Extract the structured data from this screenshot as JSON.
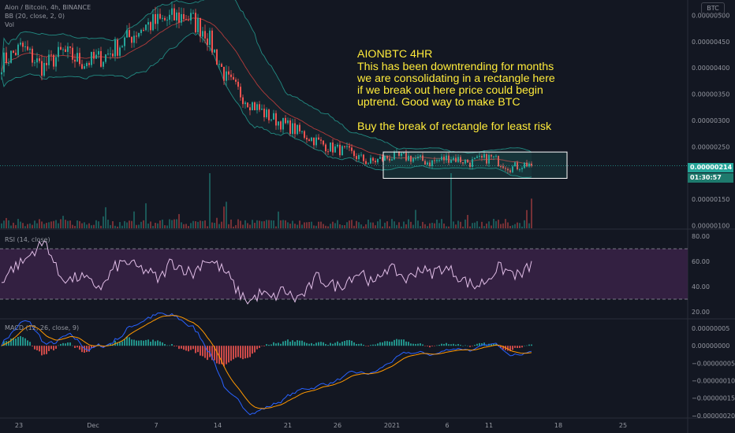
{
  "header": {
    "symbol_line": "Aion / Bitcoin, 4h, BINANCE",
    "bb_line": "BB (20, close, 2, 0)",
    "vol_line": "Vol",
    "currency_button": "BTC"
  },
  "annotation": {
    "lines": [
      "AIONBTC 4HR",
      "This has been downtrending for months",
      "we are consolidating in a rectangle here",
      "if we break out here price could begin",
      "uptrend. Good way to make BTC",
      "",
      "Buy the break of rectangle for least risk"
    ]
  },
  "price_axis": {
    "ticks": [
      "0.00000500",
      "0.00000450",
      "0.00000400",
      "0.00000350",
      "0.00000300",
      "0.00000250",
      "0.00000150",
      "0.00000100"
    ],
    "last_price": "0.00000214",
    "countdown": "01:30:57"
  },
  "rsi": {
    "label": "RSI (14, close)",
    "ticks": [
      "80.00",
      "60.00",
      "40.00",
      "20.00"
    ]
  },
  "macd": {
    "label": "MACD (12, 26, close, 9)",
    "ticks": [
      "0.00000005",
      "0.00000000",
      "−0.00000005",
      "−0.00000010",
      "−0.00000015",
      "−0.00000020"
    ]
  },
  "time_axis": {
    "ticks": [
      "23",
      "Dec",
      "7",
      "14",
      "21",
      "26",
      "2021",
      "6",
      "11",
      "18",
      "25"
    ]
  },
  "colors": {
    "background": "#131722",
    "up": "#26a69a",
    "down": "#ef5350",
    "bb_band": "#26a69a",
    "bb_basis": "#b33b3b",
    "rsi_line": "#e1bee7",
    "rsi_fill": "#3a2247",
    "macd_line": "#2962ff",
    "signal_line": "#ff9800",
    "rectangle": "#ffffff",
    "annotation_text": "#ffeb3b",
    "last_price_bg": "#26a69a"
  },
  "chart_data": [
    {
      "type": "candlestick",
      "title": "Aion / Bitcoin, 4h, BINANCE",
      "ylim": [
        9.5e-07,
        5.2e-06
      ],
      "x": [
        "23",
        "Dec",
        "7",
        "14",
        "21",
        "26",
        "2021",
        "6",
        "11",
        "18",
        "25"
      ],
      "close_path": [
        4.1e-06,
        4.4e-06,
        4e-06,
        4.3e-06,
        4.1e-06,
        4.2e-06,
        4.5e-06,
        4.8e-06,
        4.9e-06,
        5e-06,
        4.7e-06,
        3.8e-06,
        3.4e-06,
        3.1e-06,
        2.9e-06,
        2.7e-06,
        2.5e-06,
        2.4e-06,
        2.2e-06,
        2.3e-06,
        2.3e-06,
        2.2e-06,
        2.3e-06,
        2.2e-06,
        2.3e-06,
        2.1e-06,
        2.2e-06
      ],
      "last_price": 2.14e-06,
      "annotation_rectangle": {
        "price_low": 1.9e-06,
        "price_high": 2.4e-06
      }
    },
    {
      "type": "line",
      "name": "RSI (14, close)",
      "ylim": [
        15,
        85
      ],
      "levels": [
        70,
        30
      ],
      "values": [
        45,
        55,
        60,
        70,
        75,
        50,
        45,
        48,
        42,
        40,
        55,
        60,
        55,
        52,
        45,
        60,
        55,
        50,
        62,
        58,
        50,
        35,
        28,
        35,
        30,
        38,
        30,
        35,
        48,
        42,
        40,
        48,
        52,
        40,
        55,
        52,
        45,
        55,
        50,
        55,
        52,
        45,
        40,
        45,
        55,
        52,
        48,
        58
      ]
    },
    {
      "type": "bar",
      "name": "MACD (12, 26, close, 9)",
      "ylim": [
        -2.05e-07,
        7.5e-08
      ]
    }
  ]
}
